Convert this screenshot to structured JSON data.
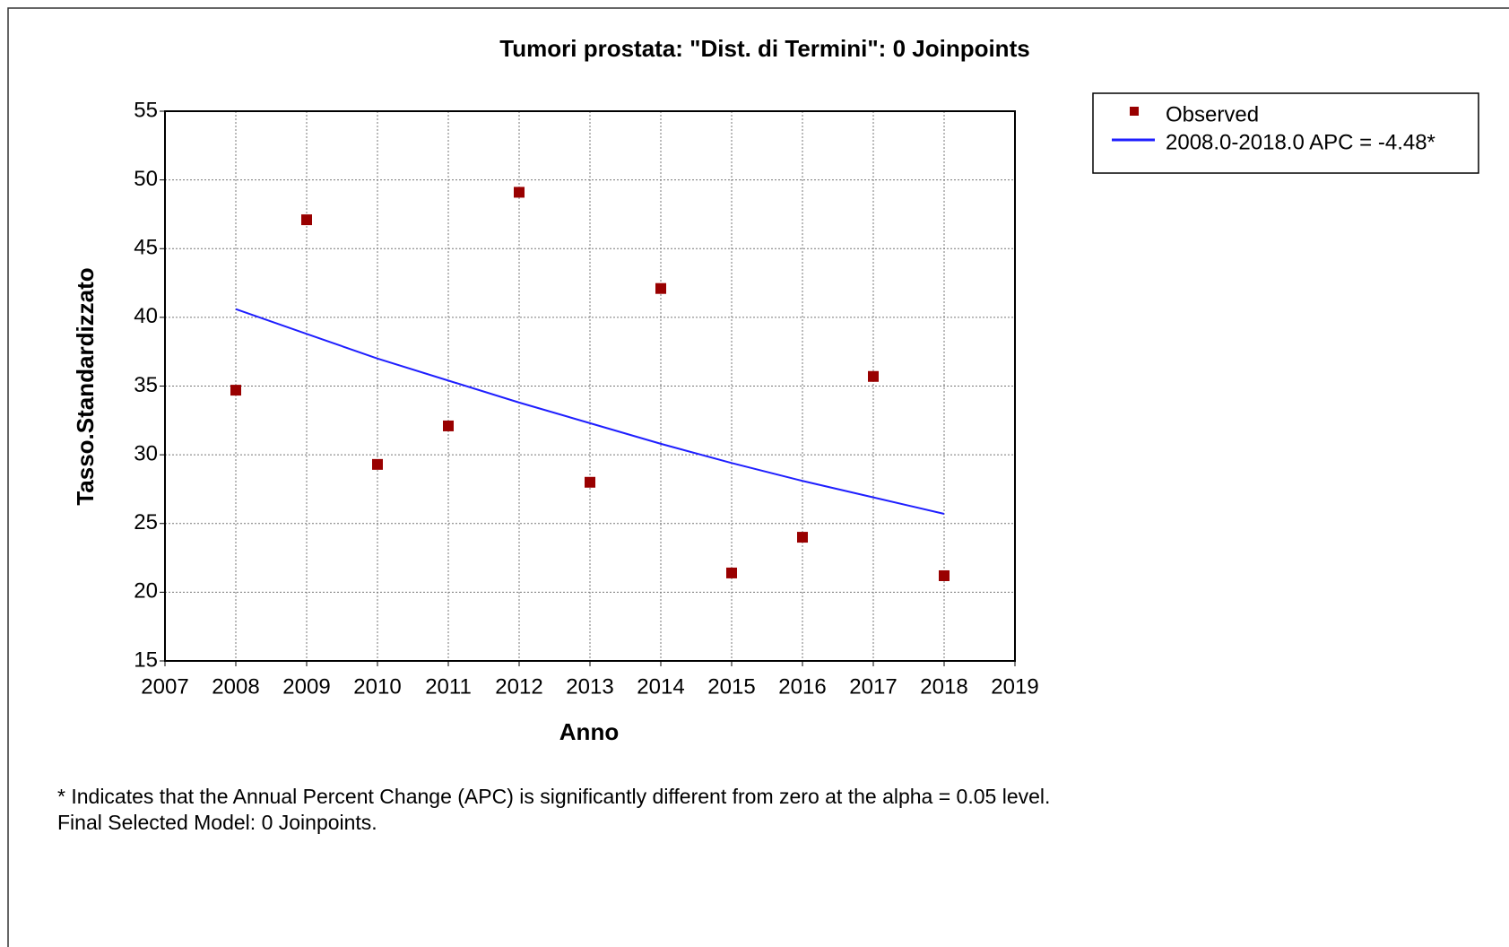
{
  "chart_data": {
    "type": "scatter",
    "title": "Tumori prostata: \"Dist. di Termini\": 0 Joinpoints",
    "x_label": "Anno",
    "y_label": "Tasso.Standardizzato",
    "x": [
      2008,
      2009,
      2010,
      2011,
      2012,
      2013,
      2014,
      2015,
      2016,
      2017,
      2018
    ],
    "series": [
      {
        "name": "Observed",
        "color": "#990000",
        "style": "markers",
        "values": [
          34.7,
          47.1,
          29.3,
          32.1,
          49.1,
          28.0,
          42.1,
          21.4,
          24.0,
          35.7,
          21.2
        ]
      },
      {
        "name": "2008.0-2018.0 APC  = -4.48*",
        "color": "#1f1fff",
        "style": "line",
        "values": [
          40.6,
          38.8,
          37.0,
          35.4,
          33.8,
          32.3,
          30.8,
          29.4,
          28.1,
          26.9,
          25.7
        ]
      }
    ],
    "xlim": [
      2007,
      2019
    ],
    "xticks": [
      2007,
      2008,
      2009,
      2010,
      2011,
      2012,
      2013,
      2014,
      2015,
      2016,
      2017,
      2018,
      2019
    ],
    "ylim": [
      15,
      55
    ],
    "yticks": [
      15,
      20,
      25,
      30,
      35,
      40,
      45,
      50,
      55
    ],
    "grid": true,
    "legend": "outside-right",
    "notes": [
      "* Indicates that the Annual Percent Change (APC) is significantly different from zero at the alpha = 0.05 level.",
      "Final Selected Model: 0 Joinpoints."
    ]
  }
}
